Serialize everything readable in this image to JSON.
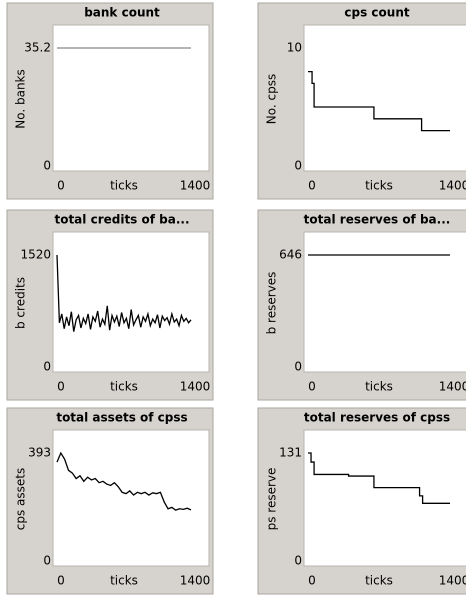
{
  "chart_data": [
    {
      "type": "line",
      "title": "bank count",
      "xlabel": "ticks",
      "ylabel": "No. banks",
      "color": "#888888",
      "step": false,
      "x": [
        0,
        1400
      ],
      "values": [
        35.2,
        35.2
      ],
      "xlim": [
        0,
        1400
      ],
      "ylim": [
        0,
        35.2
      ],
      "xticks": [
        0,
        1400
      ],
      "yticks": [
        0,
        35.2
      ]
    },
    {
      "type": "line",
      "title": "cps count",
      "xlabel": "ticks",
      "ylabel": "No. cpss",
      "color": "#000000",
      "step": true,
      "x": [
        0,
        40,
        60,
        650,
        1120,
        1400
      ],
      "values": [
        8,
        7,
        5,
        4,
        3,
        3
      ],
      "xlim": [
        0,
        1400
      ],
      "ylim": [
        0,
        10
      ],
      "xticks": [
        0,
        1400
      ],
      "yticks": [
        0,
        10
      ]
    },
    {
      "type": "line",
      "title": "total credits of ba...",
      "xlabel": "ticks",
      "ylabel": "b credits",
      "color": "#000000",
      "step": false,
      "x": [
        0,
        25,
        50,
        75,
        100,
        125,
        150,
        175,
        200,
        225,
        250,
        275,
        300,
        325,
        350,
        375,
        400,
        425,
        450,
        475,
        500,
        525,
        550,
        575,
        600,
        625,
        650,
        675,
        700,
        725,
        750,
        775,
        800,
        825,
        850,
        875,
        900,
        925,
        950,
        975,
        1000,
        1025,
        1050,
        1075,
        1100,
        1125,
        1150,
        1175,
        1200,
        1225,
        1250,
        1275,
        1300,
        1325,
        1350,
        1375,
        1400
      ],
      "values": [
        1520,
        600,
        720,
        520,
        680,
        560,
        750,
        480,
        640,
        700,
        530,
        660,
        590,
        720,
        510,
        680,
        620,
        760,
        540,
        650,
        580,
        830,
        500,
        700,
        610,
        690,
        550,
        740,
        600,
        660,
        520,
        780,
        570,
        640,
        700,
        540,
        680,
        620,
        720,
        560,
        650,
        600,
        710,
        530,
        690,
        630,
        670,
        580,
        720,
        610,
        650,
        560,
        700,
        620,
        660,
        600,
        640
      ],
      "xlim": [
        0,
        1400
      ],
      "ylim": [
        0,
        1520
      ],
      "xticks": [
        0,
        1400
      ],
      "yticks": [
        0,
        1520
      ]
    },
    {
      "type": "line",
      "title": "total reserves of ba...",
      "xlabel": "ticks",
      "ylabel": "b reserves",
      "color": "#000000",
      "step": false,
      "x": [
        0,
        1400
      ],
      "values": [
        646,
        646
      ],
      "xlim": [
        0,
        1400
      ],
      "ylim": [
        0,
        646
      ],
      "xticks": [
        0,
        1400
      ],
      "yticks": [
        0,
        646
      ]
    },
    {
      "type": "line",
      "title": "total assets of cpss",
      "xlabel": "ticks",
      "ylabel": "cps assets",
      "color": "#000000",
      "step": false,
      "x": [
        0,
        40,
        80,
        120,
        160,
        200,
        240,
        280,
        320,
        360,
        400,
        440,
        480,
        520,
        560,
        600,
        640,
        680,
        720,
        760,
        800,
        840,
        880,
        920,
        960,
        1000,
        1040,
        1080,
        1120,
        1160,
        1200,
        1240,
        1280,
        1320,
        1360,
        1400
      ],
      "values": [
        360,
        393,
        370,
        330,
        320,
        300,
        310,
        290,
        305,
        295,
        300,
        285,
        290,
        280,
        275,
        285,
        270,
        250,
        245,
        255,
        240,
        250,
        245,
        250,
        240,
        248,
        245,
        250,
        215,
        190,
        195,
        185,
        190,
        188,
        192,
        186
      ],
      "xlim": [
        0,
        1400
      ],
      "ylim": [
        0,
        393
      ],
      "xticks": [
        0,
        1400
      ],
      "yticks": [
        0,
        393
      ]
    },
    {
      "type": "line",
      "title": "total reserves of cpss",
      "xlabel": "ticks",
      "ylabel": "ps reserve",
      "color": "#000000",
      "step": true,
      "x": [
        0,
        30,
        60,
        400,
        650,
        1100,
        1130,
        1400
      ],
      "values": [
        131,
        120,
        105,
        103,
        89,
        79,
        70,
        70
      ],
      "xlim": [
        0,
        1400
      ],
      "ylim": [
        0,
        131
      ],
      "xticks": [
        0,
        1400
      ],
      "yticks": [
        0,
        131
      ]
    }
  ]
}
